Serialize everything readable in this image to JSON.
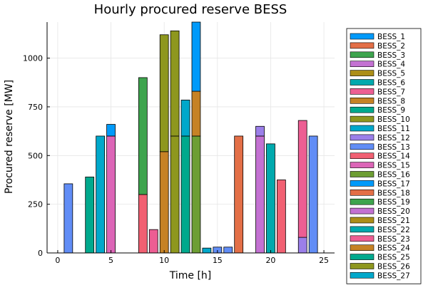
{
  "chart_data": {
    "type": "bar",
    "stacked": true,
    "title": "Hourly procured reserve BESS",
    "xlabel": "Time [h]",
    "ylabel": "Procured reserve [MW]",
    "xlim": [
      -1,
      26
    ],
    "ylim": [
      0,
      1185
    ],
    "xticks": [
      0,
      5,
      10,
      15,
      20,
      25
    ],
    "yticks": [
      0,
      250,
      500,
      750,
      1000
    ],
    "grid": true,
    "legend_position": "right",
    "series": [
      {
        "name": "BESS_1",
        "color": "#009AFA"
      },
      {
        "name": "BESS_2",
        "color": "#E36F47"
      },
      {
        "name": "BESS_3",
        "color": "#3EA44E"
      },
      {
        "name": "BESS_4",
        "color": "#C371D2"
      },
      {
        "name": "BESS_5",
        "color": "#AC8E18"
      },
      {
        "name": "BESS_6",
        "color": "#00A9AD"
      },
      {
        "name": "BESS_7",
        "color": "#ED5E93"
      },
      {
        "name": "BESS_8",
        "color": "#C68225"
      },
      {
        "name": "BESS_9",
        "color": "#00A98D"
      },
      {
        "name": "BESS_10",
        "color": "#8E971E"
      },
      {
        "name": "BESS_11",
        "color": "#00A8CB"
      },
      {
        "name": "BESS_12",
        "color": "#9B7FE9"
      },
      {
        "name": "BESS_13",
        "color": "#618DF6"
      },
      {
        "name": "BESS_14",
        "color": "#F16072"
      },
      {
        "name": "BESS_15",
        "color": "#DC65B7"
      },
      {
        "name": "BESS_16",
        "color": "#6D9E33"
      },
      {
        "name": "BESS_17",
        "color": "#009AFA"
      },
      {
        "name": "BESS_18",
        "color": "#E36F47"
      },
      {
        "name": "BESS_19",
        "color": "#3EA44E"
      },
      {
        "name": "BESS_20",
        "color": "#C371D2"
      },
      {
        "name": "BESS_21",
        "color": "#AC8E18"
      },
      {
        "name": "BESS_22",
        "color": "#00A9AD"
      },
      {
        "name": "BESS_23",
        "color": "#ED5E93"
      },
      {
        "name": "BESS_24",
        "color": "#C68225"
      },
      {
        "name": "BESS_25",
        "color": "#00A98D"
      },
      {
        "name": "BESS_26",
        "color": "#8E971E"
      },
      {
        "name": "BESS_27",
        "color": "#00A8CB"
      }
    ],
    "bars": [
      {
        "x": 1,
        "segments": [
          {
            "series": "BESS_13",
            "value": 355
          }
        ]
      },
      {
        "x": 3,
        "segments": [
          {
            "series": "BESS_25",
            "value": 390
          }
        ]
      },
      {
        "x": 4,
        "segments": [
          {
            "series": "BESS_27",
            "value": 600
          }
        ]
      },
      {
        "x": 5,
        "segments": [
          {
            "series": "BESS_15",
            "value": 600
          },
          {
            "series": "BESS_17",
            "value": 60
          }
        ]
      },
      {
        "x": 8,
        "segments": [
          {
            "series": "BESS_14",
            "value": 300
          },
          {
            "series": "BESS_19",
            "value": 600
          }
        ]
      },
      {
        "x": 9,
        "segments": [
          {
            "series": "BESS_23",
            "value": 120
          }
        ]
      },
      {
        "x": 10,
        "segments": [
          {
            "series": "BESS_24",
            "value": 520
          },
          {
            "series": "BESS_26",
            "value": 600
          }
        ]
      },
      {
        "x": 11,
        "segments": [
          {
            "series": "BESS_26",
            "value": 600
          },
          {
            "series": "BESS_10",
            "value": 540
          }
        ]
      },
      {
        "x": 12,
        "segments": [
          {
            "series": "BESS_25",
            "value": 600
          },
          {
            "series": "BESS_27",
            "value": 185
          }
        ]
      },
      {
        "x": 13,
        "segments": [
          {
            "series": "BESS_16",
            "value": 600
          },
          {
            "series": "BESS_24",
            "value": 230
          },
          {
            "series": "BESS_17",
            "value": 355
          }
        ]
      },
      {
        "x": 14,
        "segments": [
          {
            "series": "BESS_11",
            "value": 25
          }
        ]
      },
      {
        "x": 15,
        "segments": [
          {
            "series": "BESS_13",
            "value": 30
          }
        ]
      },
      {
        "x": 16,
        "segments": [
          {
            "series": "BESS_13",
            "value": 30
          }
        ]
      },
      {
        "x": 17,
        "segments": [
          {
            "series": "BESS_18",
            "value": 600
          }
        ]
      },
      {
        "x": 19,
        "segments": [
          {
            "series": "BESS_20",
            "value": 600
          },
          {
            "series": "BESS_12",
            "value": 50
          }
        ]
      },
      {
        "x": 20,
        "segments": [
          {
            "series": "BESS_22",
            "value": 560
          }
        ]
      },
      {
        "x": 21,
        "segments": [
          {
            "series": "BESS_14",
            "value": 375
          }
        ]
      },
      {
        "x": 23,
        "segments": [
          {
            "series": "BESS_12",
            "value": 80
          },
          {
            "series": "BESS_23",
            "value": 600
          }
        ]
      },
      {
        "x": 24,
        "segments": [
          {
            "series": "BESS_13",
            "value": 600
          }
        ]
      }
    ]
  }
}
